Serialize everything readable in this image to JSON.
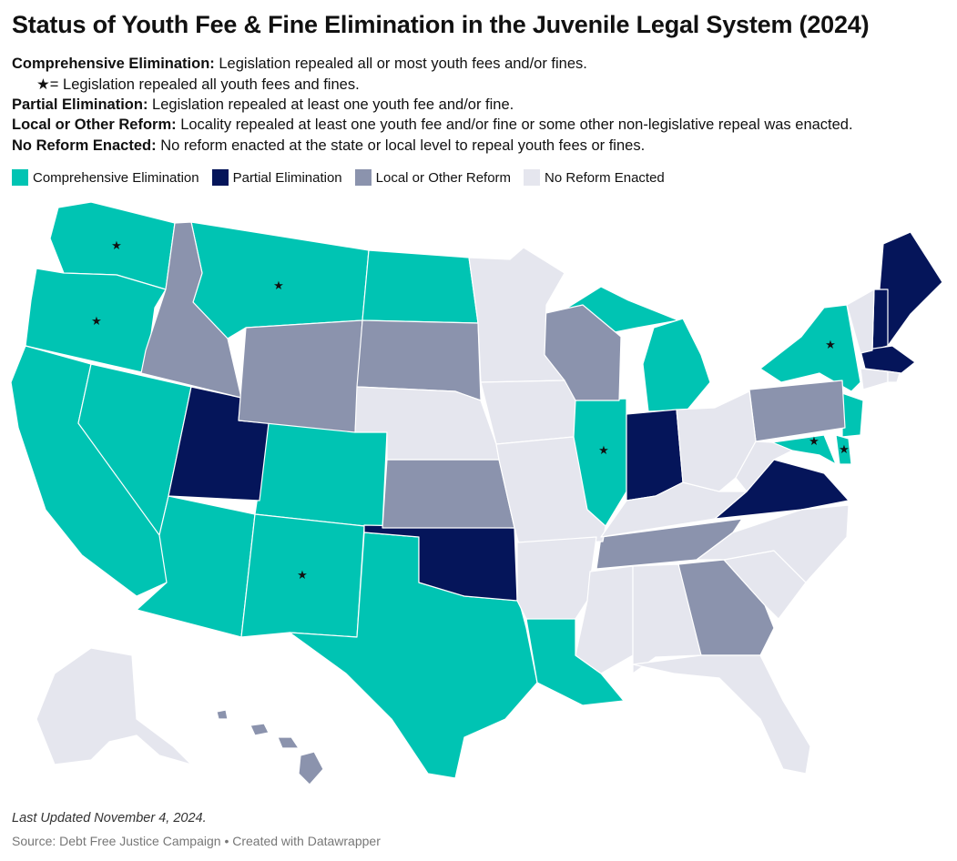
{
  "title": "Status of Youth Fee & Fine Elimination in the Juvenile Legal System (2024)",
  "definitions": [
    {
      "term": "Comprehensive Elimination:",
      "text": " Legislation repealed all or most youth fees and/or fines."
    },
    {
      "term": "Partial Elimination:",
      "text": " Legislation repealed at least one youth fee and/or fine."
    },
    {
      "term": "Local or Other Reform:",
      "text": " Locality repealed at least one youth fee and/or fine or some other non-legislative repeal was enacted."
    },
    {
      "term": "No Reform Enacted:",
      "text": " No reform enacted at the state or local level to repeal youth fees or fines."
    }
  ],
  "star_note": "★= Legislation repealed all youth fees and fines.",
  "legend": [
    {
      "label": "Comprehensive Elimination",
      "color": "#00c4b3"
    },
    {
      "label": "Partial Elimination",
      "color": "#05155a"
    },
    {
      "label": "Local or Other Reform",
      "color": "#8b93ad"
    },
    {
      "label": "No Reform Enacted",
      "color": "#e5e6ee"
    }
  ],
  "states": {
    "comprehensive": [
      "WA",
      "OR",
      "CA",
      "NV",
      "AZ",
      "NM",
      "CO",
      "MT",
      "ND",
      "TX",
      "LA",
      "IL",
      "MI",
      "NY",
      "NJ",
      "DE",
      "MD"
    ],
    "partial": [
      "UT",
      "OK",
      "IN",
      "VA",
      "ME",
      "NH",
      "MA"
    ],
    "local_other": [
      "ID",
      "WY",
      "SD",
      "KS",
      "WI",
      "PA",
      "TN",
      "GA",
      "HI",
      "AK_part"
    ],
    "none": [
      "AK",
      "MN",
      "IA",
      "NE",
      "MO",
      "AR",
      "MS",
      "AL",
      "FL",
      "SC",
      "NC",
      "KY",
      "OH",
      "WV",
      "VT",
      "CT",
      "RI"
    ]
  },
  "starred_states": [
    "WA",
    "OR",
    "MT",
    "NM",
    "IL",
    "NY",
    "MD",
    "DE"
  ],
  "footer": {
    "updated": "Last Updated November 4, 2024.",
    "source": "Source: Debt Free Justice Campaign • Created with Datawrapper"
  }
}
